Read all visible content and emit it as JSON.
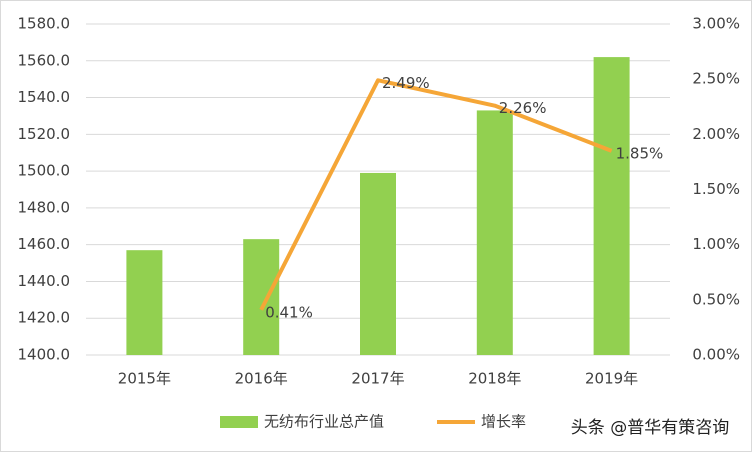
{
  "chart_data": {
    "type": "bar-line",
    "categories": [
      "2015年",
      "2016年",
      "2017年",
      "2018年",
      "2019年"
    ],
    "series": [
      {
        "name": "无纺布行业总产值",
        "type": "bar",
        "color": "#92d050",
        "values": [
          1457,
          1463,
          1499,
          1533,
          1562
        ]
      },
      {
        "name": "增长率",
        "type": "line",
        "axis": "y2",
        "color": "#f5a637",
        "values": [
          null,
          0.41,
          2.49,
          2.26,
          1.85
        ],
        "value_labels": [
          null,
          "0.41%",
          "2.49%",
          "2.26%",
          "1.85%"
        ]
      }
    ],
    "ylim": [
      1400,
      1580
    ],
    "yticks": [
      {
        "value": 1400,
        "label": "1400.0"
      },
      {
        "value": 1420,
        "label": "1420.0"
      },
      {
        "value": 1440,
        "label": "1440.0"
      },
      {
        "value": 1460,
        "label": "1460.0"
      },
      {
        "value": 1480,
        "label": "1480.0"
      },
      {
        "value": 1500,
        "label": "1500.0"
      },
      {
        "value": 1520,
        "label": "1520.0"
      },
      {
        "value": 1540,
        "label": "1540.0"
      },
      {
        "value": 1560,
        "label": "1560.0"
      },
      {
        "value": 1580,
        "label": "1580.0"
      }
    ],
    "y2lim": [
      0,
      3
    ],
    "y2ticks": [
      {
        "value": 0,
        "label": "0.00%"
      },
      {
        "value": 0.5,
        "label": "0.50%"
      },
      {
        "value": 1,
        "label": "1.00%"
      },
      {
        "value": 1.5,
        "label": "1.50%"
      },
      {
        "value": 2,
        "label": "2.00%"
      },
      {
        "value": 2.5,
        "label": "2.50%"
      },
      {
        "value": 3,
        "label": "3.00%"
      }
    ],
    "grid": true,
    "legend": "bottom",
    "watermark": "头条 @普华有策咨询"
  }
}
